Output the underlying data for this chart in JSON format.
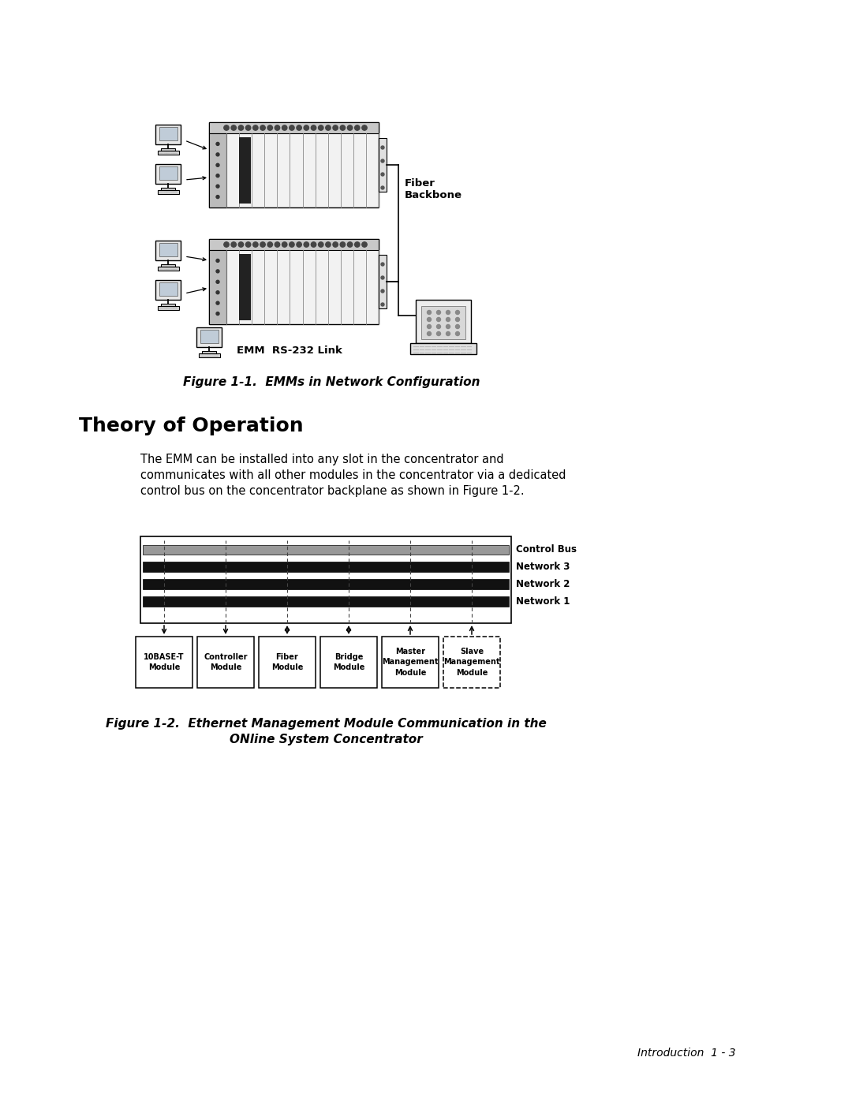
{
  "page_bg": "#ffffff",
  "fig1_caption": "Figure 1-1.  EMMs in Network Configuration",
  "fig1_caption_fontsize": 11,
  "theory_title": "Theory of Operation",
  "theory_title_fontsize": 18,
  "theory_text_line1": "The EMM can be installed into any slot in the concentrator and",
  "theory_text_line2": "communicates with all other modules in the concentrator via a dedicated",
  "theory_text_line3": "control bus on the concentrator backplane as shown in Figure 1-2.",
  "theory_text_fontsize": 10.5,
  "fig2_caption_line1": "Figure 1-2.  Ethernet Management Module Communication in the",
  "fig2_caption_line2": "ONline System Concentrator",
  "fig2_caption_fontsize": 11,
  "footer_text": "Introduction  1 - 3",
  "footer_fontsize": 10,
  "bus_labels": [
    "Control Bus",
    "Network 3",
    "Network 2",
    "Network 1"
  ],
  "bus_colors": [
    "#999999",
    "#111111",
    "#111111",
    "#111111"
  ],
  "module_labels": [
    "10BASE-T\nModule",
    "Controller\nModule",
    "Fiber\nModule",
    "Bridge\nModule",
    "Master\nManagement\nModule",
    "Slave\nManagement\nModule"
  ],
  "module_dashed": [
    false,
    false,
    false,
    false,
    false,
    true
  ],
  "fiber_backbone_label": "Fiber\nBackbone",
  "emm_link_label": "EMM  RS-232 Link"
}
